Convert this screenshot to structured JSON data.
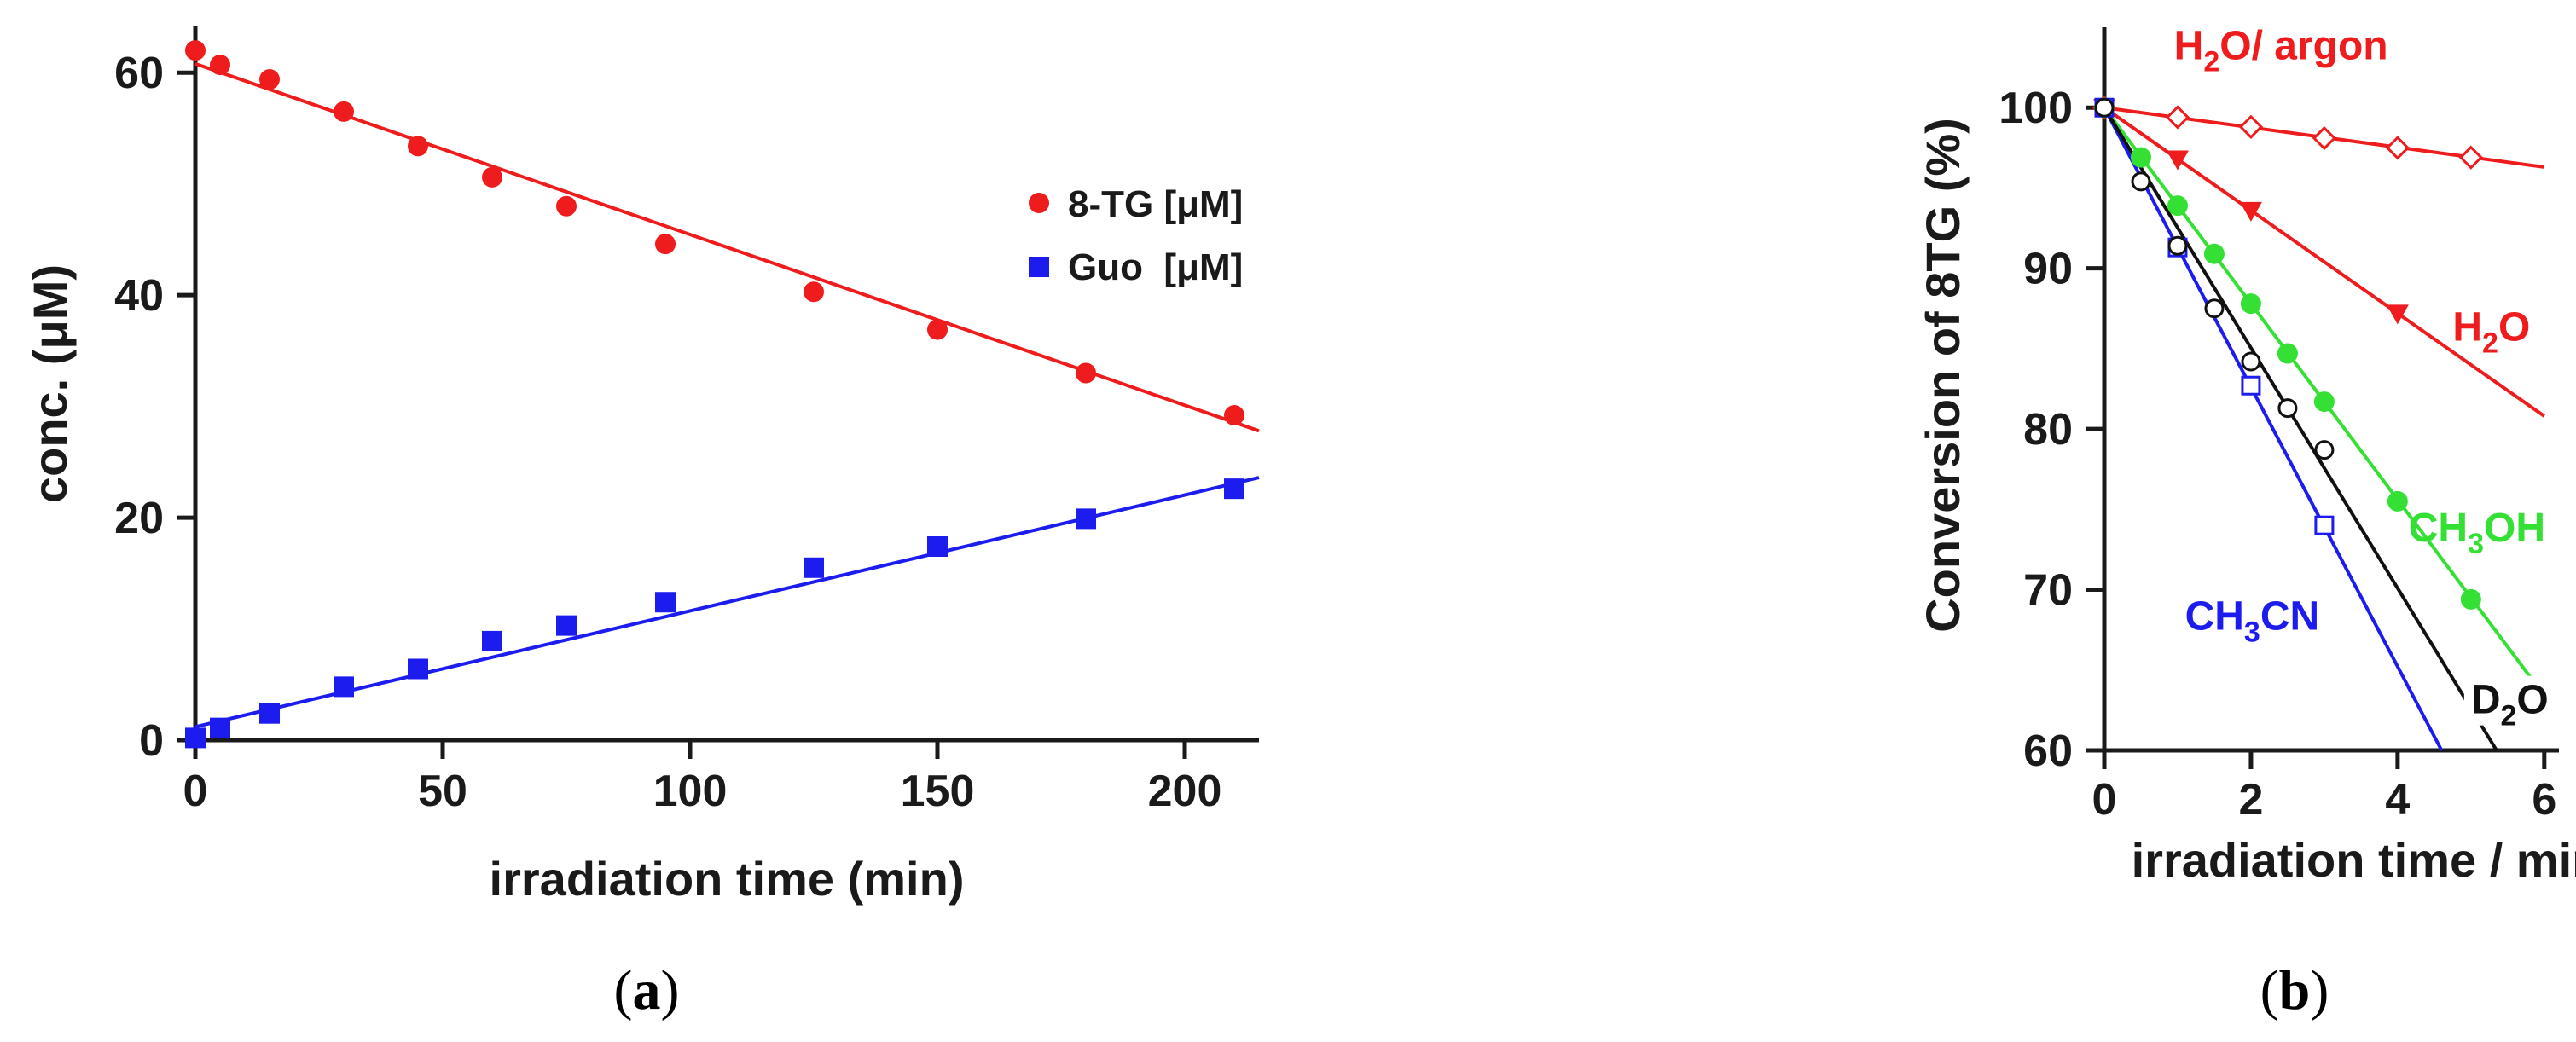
{
  "figure": {
    "panel_a_label": {
      "open": "(",
      "letter": "a",
      "close": ")"
    },
    "panel_b_label": {
      "open": "(",
      "letter": "b",
      "close": ")"
    }
  },
  "chart_data": [
    {
      "id": "a",
      "type": "scatter",
      "xlabel": "irradiation time (min)",
      "ylabel": "conc. (μM)",
      "xlim": [
        0,
        215
      ],
      "ylim": [
        0,
        65
      ],
      "xticks": [
        0,
        50,
        100,
        150,
        200
      ],
      "yticks": [
        0,
        20,
        40,
        60
      ],
      "legend_position": "top-right",
      "series": [
        {
          "name": "8-TG [μM]",
          "color": "#ee1c1c",
          "marker": "filled-circle",
          "x": [
            0,
            5,
            15,
            30,
            45,
            60,
            75,
            95,
            125,
            150,
            180,
            210
          ],
          "y": [
            62,
            60.7,
            59.4,
            56.5,
            53.4,
            50.6,
            48,
            44.6,
            40.3,
            36.9,
            33,
            29.2
          ],
          "fit": {
            "x": [
              0,
              215
            ],
            "y": [
              60.8,
              27.8
            ]
          }
        },
        {
          "name": "Guo  [μM]",
          "color": "#1c1cee",
          "marker": "filled-square",
          "x": [
            0,
            5,
            15,
            30,
            45,
            60,
            75,
            95,
            125,
            150,
            180,
            210
          ],
          "y": [
            0.2,
            1.1,
            2.4,
            4.8,
            6.4,
            8.9,
            10.3,
            12.4,
            15.5,
            17.4,
            19.9,
            22.6
          ],
          "fit": {
            "x": [
              0,
              215
            ],
            "y": [
              1.2,
              23.6
            ]
          }
        }
      ]
    },
    {
      "id": "b",
      "type": "scatter",
      "xlabel": "irradiation time / min",
      "ylabel": "Conversion of 8TG (%)",
      "xlim": [
        0,
        6.2
      ],
      "ylim": [
        60,
        105
      ],
      "xticks": [
        0,
        2,
        4,
        6
      ],
      "yticks": [
        60,
        70,
        80,
        90,
        100
      ],
      "series": [
        {
          "name": "H2O/ argon",
          "label_main": "H",
          "label_sub": "2",
          "label_tail": "O/ argon",
          "label_at": [
            0.95,
            103
          ],
          "color": "#ee1c1c",
          "marker": "open-diamond",
          "x": [
            0,
            1,
            2,
            3,
            4,
            5
          ],
          "y": [
            100,
            99.4,
            98.8,
            98.1,
            97.5,
            96.9
          ],
          "fit": {
            "x": [
              0,
              6
            ],
            "y": [
              100,
              96.3
            ]
          }
        },
        {
          "name": "H2O",
          "label_main": "H",
          "label_sub": "2",
          "label_tail": "O",
          "label_at": [
            4.75,
            85.5
          ],
          "color": "#ee1c1c",
          "marker": "filled-triangle-down",
          "x": [
            0,
            1,
            2,
            4
          ],
          "y": [
            100,
            96.8,
            93.6,
            87.2
          ],
          "fit": {
            "x": [
              0,
              6
            ],
            "y": [
              100,
              80.8
            ]
          }
        },
        {
          "name": "CH3OH",
          "label_main": "CH",
          "label_sub": "3",
          "label_tail": "OH",
          "label_at": [
            4.15,
            73
          ],
          "color": "#33e033",
          "marker": "filled-circle",
          "x": [
            0,
            0.5,
            1,
            1.5,
            2,
            2.5,
            3,
            4,
            5,
            6
          ],
          "y": [
            100,
            96.9,
            93.9,
            90.9,
            87.8,
            84.7,
            81.7,
            75.5,
            69.4,
            63.4
          ],
          "fit": {
            "x": [
              0,
              6
            ],
            "y": [
              100,
              63.4
            ]
          }
        },
        {
          "name": "CH3CN",
          "label_main": "CH",
          "label_sub": "3",
          "label_tail": "CN",
          "label_at": [
            1.1,
            67.5
          ],
          "color": "#1c1cee",
          "marker": "open-square",
          "x": [
            0,
            1,
            2,
            3
          ],
          "y": [
            100,
            91.3,
            82.7,
            74.0
          ],
          "fit": {
            "x": [
              0,
              4.6
            ],
            "y": [
              100,
              60
            ]
          }
        },
        {
          "name": "D2O",
          "label_main": "D",
          "label_sub": "2",
          "label_tail": "O",
          "label_at": [
            5.0,
            62.3
          ],
          "color": "#111111",
          "marker": "open-circle",
          "x": [
            0,
            0.5,
            1,
            1.5,
            2,
            2.5,
            3
          ],
          "y": [
            100,
            95.4,
            91.4,
            87.5,
            84.2,
            81.3,
            78.7
          ],
          "fit": {
            "x": [
              0,
              5.35
            ],
            "y": [
              100,
              60
            ]
          }
        }
      ]
    }
  ]
}
